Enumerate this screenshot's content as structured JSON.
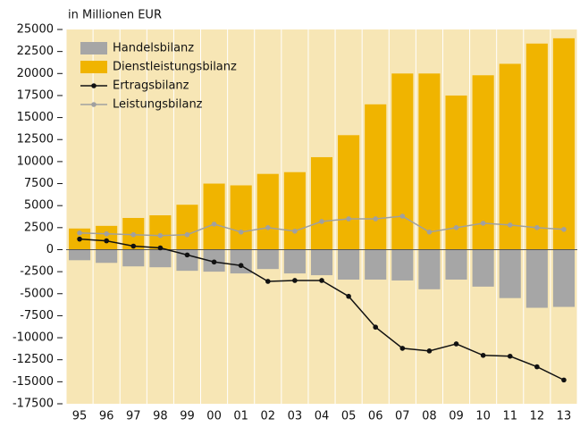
{
  "chart_data": {
    "type": "bar",
    "ylabel": "in Millionen EUR",
    "categories": [
      "95",
      "96",
      "97",
      "98",
      "99",
      "00",
      "01",
      "02",
      "03",
      "04",
      "05",
      "06",
      "07",
      "08",
      "09",
      "10",
      "11",
      "12",
      "13"
    ],
    "series": [
      {
        "name": "Handelsbilanz",
        "type": "bar",
        "color": "#a6a6a6",
        "values": [
          -1200,
          -1500,
          -1900,
          -2000,
          -2400,
          -2500,
          -2700,
          -2200,
          -2700,
          -2900,
          -3400,
          -3400,
          -3500,
          -4500,
          -3400,
          -4200,
          -5500,
          -6600,
          -6500
        ]
      },
      {
        "name": "Dienstleistungsbilanz",
        "type": "bar",
        "color": "#f0b400",
        "values": [
          2400,
          2700,
          3600,
          3900,
          5100,
          7500,
          7300,
          8600,
          8800,
          10500,
          13000,
          16500,
          20000,
          20000,
          17500,
          19800,
          21100,
          23400,
          24000
        ]
      },
      {
        "name": "Ertragsbilanz",
        "type": "line",
        "color": "#111111",
        "values": [
          1200,
          1000,
          400,
          200,
          -600,
          -1400,
          -1800,
          -3600,
          -3500,
          -3500,
          -5300,
          -8800,
          -11200,
          -11500,
          -10700,
          -12000,
          -12100,
          -13300,
          -14800
        ]
      },
      {
        "name": "Leistungsbilanz",
        "type": "line",
        "color": "#a0a0a0",
        "values": [
          1900,
          1800,
          1700,
          1600,
          1700,
          2900,
          2000,
          2500,
          2100,
          3200,
          3500,
          3500,
          3800,
          2000,
          2500,
          3000,
          2800,
          2500,
          2300
        ]
      }
    ],
    "ylim": [
      -17500,
      25000
    ],
    "yticks": [
      -17500,
      -15000,
      -12500,
      -10000,
      -7500,
      -5000,
      -2500,
      0,
      2500,
      5000,
      7500,
      10000,
      12500,
      15000,
      17500,
      20000,
      22500,
      25000
    ],
    "legend": "upper left"
  }
}
